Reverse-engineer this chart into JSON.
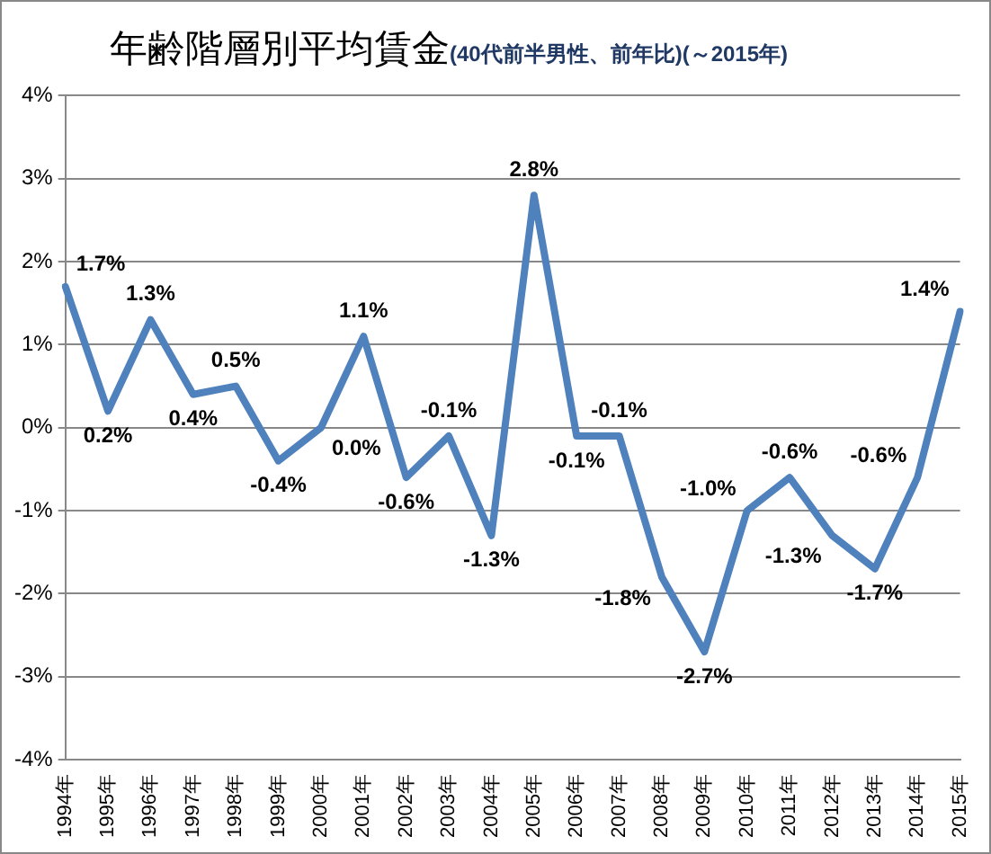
{
  "chart_data": {
    "type": "line",
    "title": "年齢階層別平均賃金",
    "subtitle": "(40代前半男性、前年比)(～2015年)",
    "categories": [
      "1994年",
      "1995年",
      "1996年",
      "1997年",
      "1998年",
      "1999年",
      "2000年",
      "2001年",
      "2002年",
      "2003年",
      "2004年",
      "2005年",
      "2006年",
      "2007年",
      "2008年",
      "2009年",
      "2010年",
      "2011年",
      "2012年",
      "2013年",
      "2014年",
      "2015年"
    ],
    "series": [
      {
        "color": "#4f81bd",
        "values": [
          1.7,
          0.2,
          1.3,
          0.4,
          0.5,
          -0.4,
          0.0,
          1.1,
          -0.6,
          -0.1,
          -1.3,
          2.8,
          -0.1,
          -0.1,
          -1.8,
          -2.7,
          -1.0,
          -0.6,
          -1.3,
          -1.7,
          -0.6,
          1.4
        ],
        "value_labels": [
          "1.7%",
          "0.2%",
          "1.3%",
          "0.4%",
          "0.5%",
          "-0.4%",
          "0.0%",
          "1.1%",
          "-0.6%",
          "-0.1%",
          "-1.3%",
          "2.8%",
          "-0.1%",
          "-0.1%",
          "-1.8%",
          "-2.7%",
          "-1.0%",
          "-0.6%",
          "-1.3%",
          "-1.7%",
          "-0.6%",
          "1.4%"
        ]
      }
    ],
    "ylim": [
      -4,
      4
    ],
    "yticks": [
      {
        "value": -4,
        "label": "-4%"
      },
      {
        "value": -3,
        "label": "-3%"
      },
      {
        "value": -2,
        "label": "-2%"
      },
      {
        "value": -1,
        "label": "-1%"
      },
      {
        "value": 0,
        "label": "0%"
      },
      {
        "value": 1,
        "label": "1%"
      },
      {
        "value": 2,
        "label": "2%"
      },
      {
        "value": 3,
        "label": "3%"
      },
      {
        "value": 4,
        "label": "4%"
      }
    ],
    "grid": "y",
    "legend": false,
    "marker": "none",
    "line_style": "solid"
  }
}
